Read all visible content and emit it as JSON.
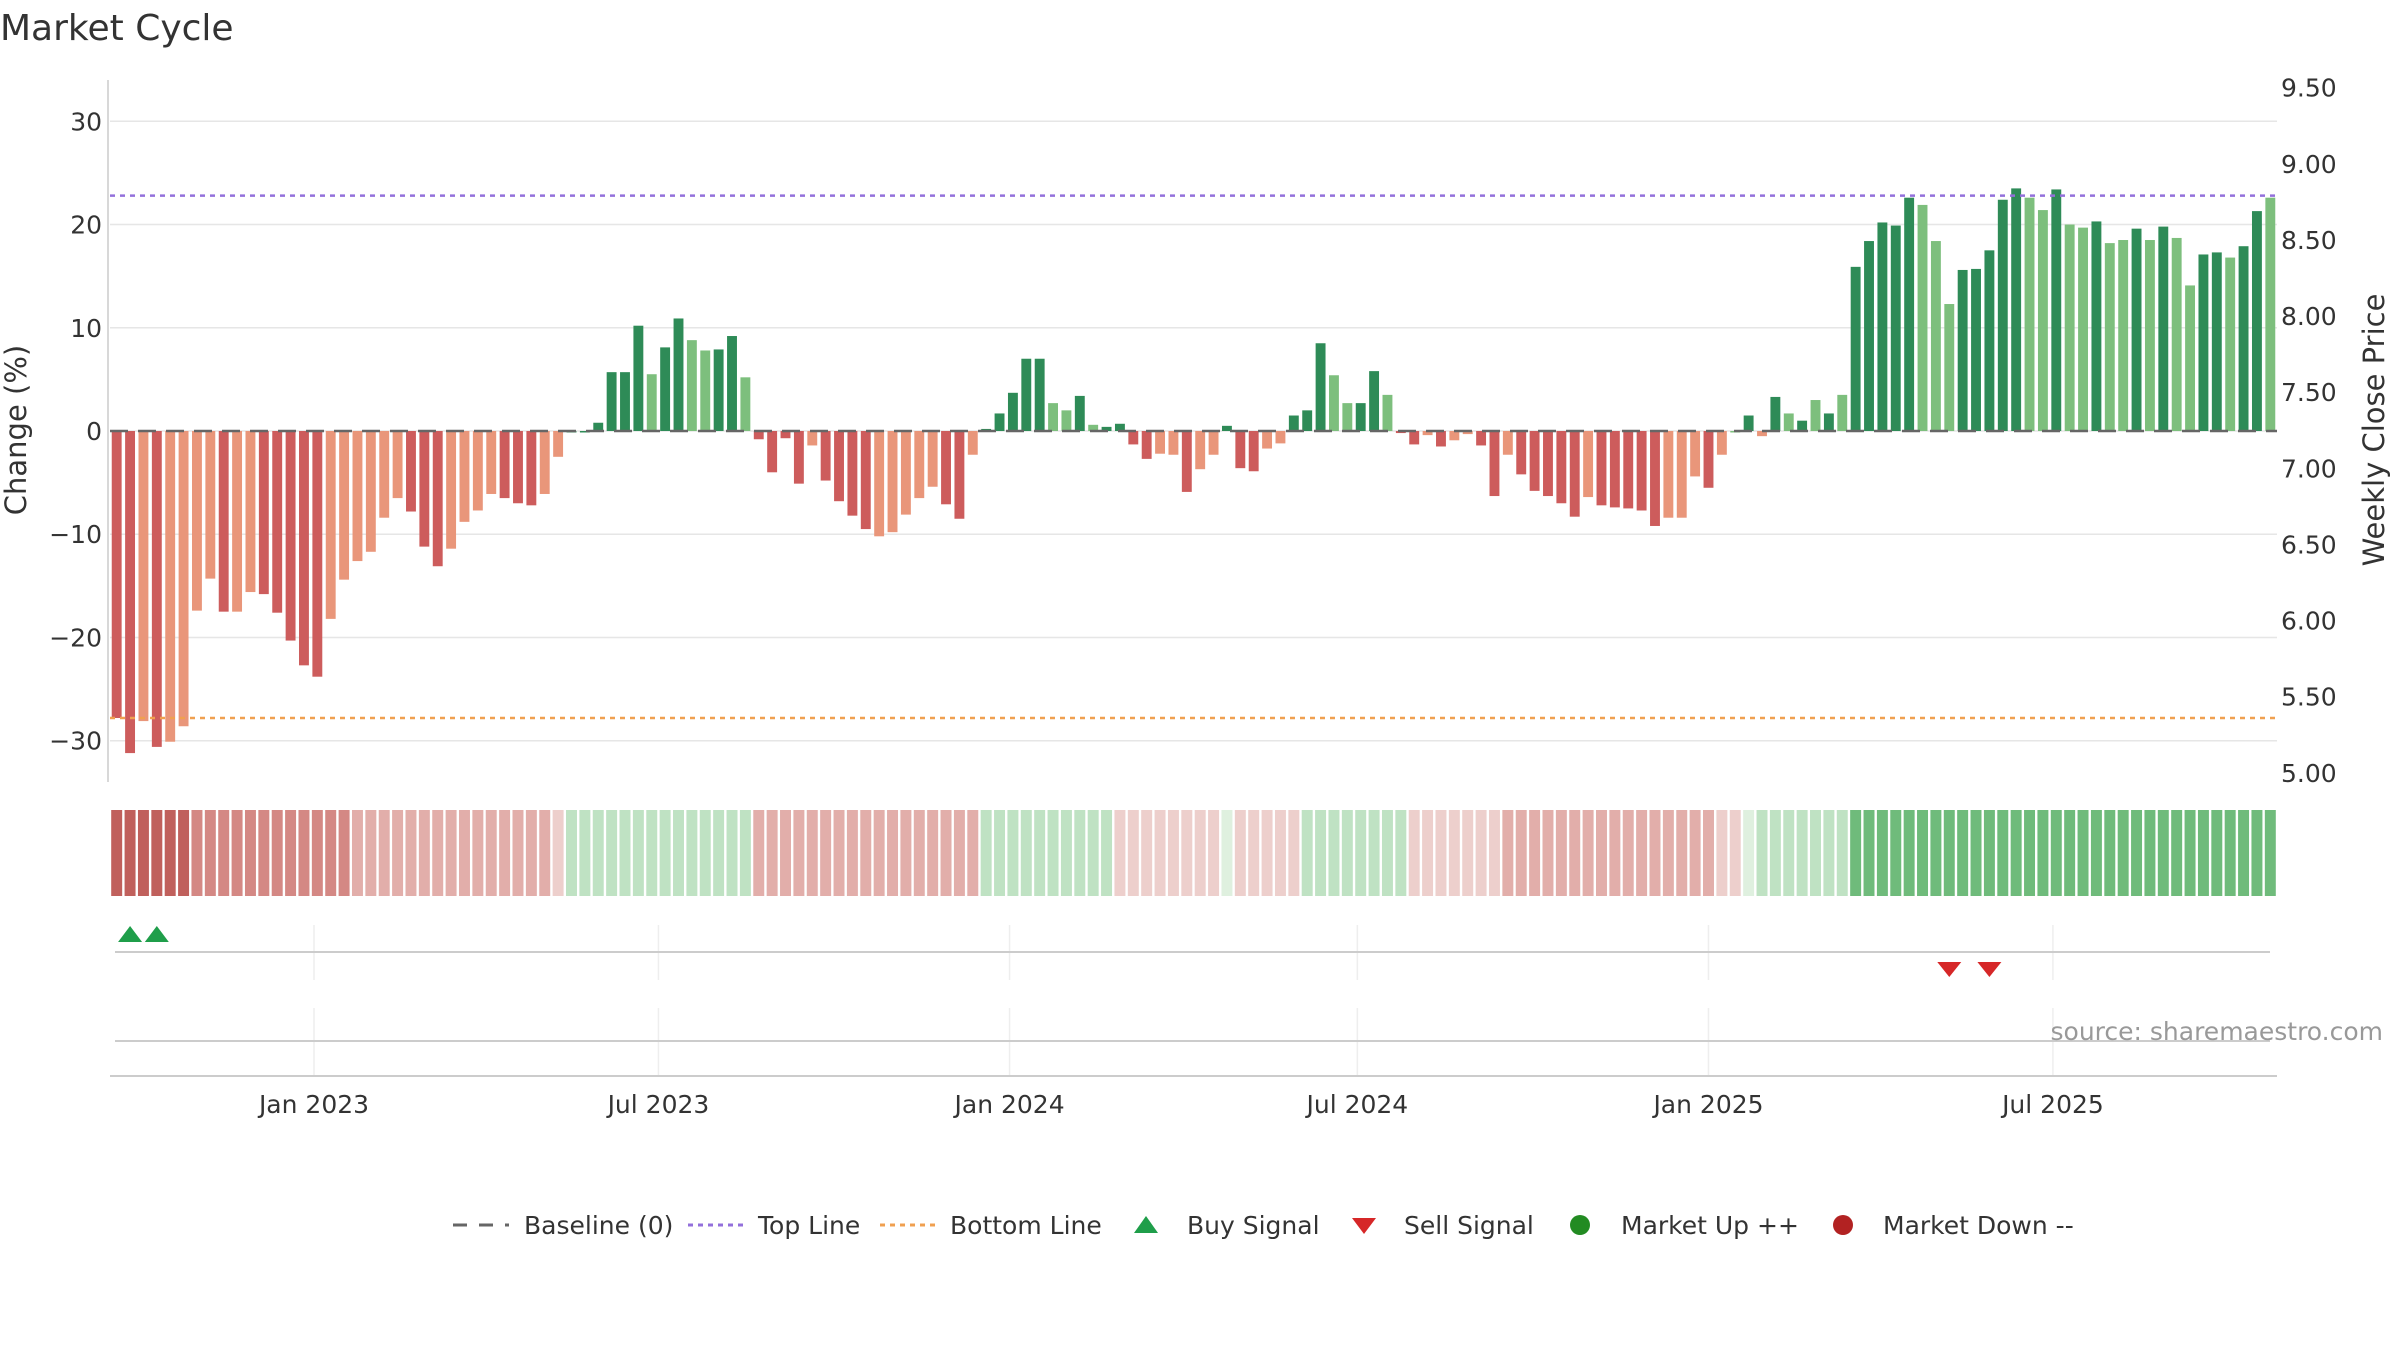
{
  "chart_data": {
    "type": "bar",
    "title": "Market Cycle",
    "y_left_label": "Change (%)",
    "y_right_label": "Weekly Close Price",
    "y_left_range": [
      -34,
      34
    ],
    "y_left_ticks": [
      "30",
      "20",
      "10",
      "0",
      "−10",
      "−20",
      "−30"
    ],
    "y_left_tick_values": [
      30,
      20,
      10,
      0,
      -10,
      -20,
      -30
    ],
    "y_right_range": [
      4.94,
      9.55
    ],
    "y_right_ticks": [
      "9.50",
      "9.00",
      "8.50",
      "8.00",
      "7.50",
      "7.00",
      "6.50",
      "6.00",
      "5.50",
      "5.00"
    ],
    "y_right_tick_values": [
      9.5,
      9.0,
      8.5,
      8.0,
      7.5,
      7.0,
      6.5,
      6.0,
      5.5,
      5.0
    ],
    "x_ticks": [
      "Jan 2023",
      "Jul 2023",
      "Jan 2024",
      "Jul 2024",
      "Jan 2025",
      "Jul 2025"
    ],
    "x_tick_positions": [
      15.25,
      41.0,
      67.25,
      93.25,
      119.5,
      145.25
    ],
    "grid": true,
    "top_line": 22.8,
    "bottom_line": -27.8,
    "weekly_change": [
      -27.8,
      -31.2,
      -28.1,
      -30.6,
      -30.1,
      -28.6,
      -17.4,
      -14.3,
      -17.5,
      -17.5,
      -15.6,
      -15.8,
      -17.6,
      -20.3,
      -22.7,
      -23.8,
      -18.2,
      -14.4,
      -12.6,
      -11.7,
      -8.4,
      -6.5,
      -7.8,
      -11.2,
      -13.1,
      -11.4,
      -8.8,
      -7.7,
      -6.1,
      -6.5,
      -7.0,
      -7.2,
      -6.1,
      -2.5,
      0.0,
      0.0,
      0.8,
      5.7,
      5.7,
      10.2,
      5.5,
      8.1,
      10.9,
      8.8,
      7.8,
      7.9,
      9.2,
      5.2,
      -0.8,
      -4.0,
      -0.7,
      -5.1,
      -1.4,
      -4.8,
      -6.8,
      -8.2,
      -9.5,
      -10.2,
      -9.8,
      -8.1,
      -6.5,
      -5.4,
      -7.1,
      -8.5,
      -2.3,
      0.2,
      1.7,
      3.7,
      7.0,
      7.0,
      2.7,
      2.0,
      3.4,
      0.6,
      0.4,
      0.7,
      -1.3,
      -2.7,
      -2.2,
      -2.3,
      -5.9,
      -3.7,
      -2.3,
      0.5,
      -3.6,
      -3.9,
      -1.7,
      -1.2,
      1.5,
      2.0,
      8.5,
      5.4,
      2.7,
      2.7,
      5.8,
      3.5,
      -0.2,
      -1.3,
      -0.4,
      -1.5,
      -0.9,
      -0.3,
      -1.4,
      -6.3,
      -2.3,
      -4.2,
      -5.8,
      -6.3,
      -7.0,
      -8.3,
      -6.4,
      -7.2,
      -7.4,
      -7.5,
      -7.7,
      -9.2,
      -8.4,
      -8.4,
      -4.4,
      -5.5,
      -2.3,
      0.0,
      1.5,
      -0.5,
      3.3,
      1.7,
      1.0,
      3.0,
      1.7,
      3.5,
      15.9,
      18.4,
      20.2,
      19.9,
      22.6,
      21.9,
      18.4,
      12.3,
      15.6,
      15.7,
      17.5,
      22.4,
      23.5,
      22.6,
      21.4,
      23.4,
      20.0,
      19.7,
      20.3,
      18.2,
      18.5,
      19.6,
      18.5,
      19.8,
      18.7,
      14.1,
      17.1,
      17.3,
      16.8,
      17.9,
      21.3,
      22.6
    ],
    "weekly_trend": [
      "down",
      "down",
      "up",
      "down",
      "up",
      "up",
      "up",
      "up",
      "down",
      "up",
      "up",
      "down",
      "down",
      "down",
      "down",
      "down",
      "up",
      "up",
      "up",
      "up",
      "up",
      "up",
      "down",
      "down",
      "down",
      "up",
      "up",
      "up",
      "up",
      "down",
      "down",
      "down",
      "up",
      "up",
      "up",
      "up",
      "up",
      "up",
      "up",
      "up",
      "down",
      "up",
      "up",
      "down",
      "down",
      "up",
      "up",
      "down",
      "down",
      "down",
      "down",
      "down",
      "up",
      "down",
      "down",
      "down",
      "down",
      "up",
      "up",
      "up",
      "up",
      "up",
      "down",
      "down",
      "up",
      "up",
      "up",
      "up",
      "up",
      "up",
      "down",
      "down",
      "up",
      "down",
      "up",
      "up",
      "down",
      "down",
      "up",
      "up",
      "down",
      "up",
      "up",
      "up",
      "down",
      "down",
      "up",
      "up",
      "up",
      "up",
      "up",
      "down",
      "down",
      "up",
      "up",
      "down",
      "down",
      "down",
      "up",
      "down",
      "up",
      "up",
      "down",
      "down",
      "up",
      "down",
      "down",
      "down",
      "down",
      "down",
      "up",
      "down",
      "down",
      "down",
      "down",
      "down",
      "up",
      "up",
      "up",
      "down",
      "up",
      "down",
      "up",
      "up",
      "up",
      "down",
      "up",
      "down",
      "up",
      "down",
      "up",
      "up",
      "up",
      "up",
      "up",
      "down",
      "down",
      "down",
      "up",
      "up",
      "up",
      "up",
      "up",
      "down",
      "down",
      "up",
      "down",
      "down",
      "up",
      "down",
      "down",
      "up",
      "down",
      "up",
      "down",
      "down",
      "up",
      "up",
      "down",
      "up",
      "up",
      "down"
    ],
    "heat_strip": [
      "d3",
      "d3",
      "d3",
      "d3",
      "d3",
      "d3",
      "d2",
      "d2",
      "d2",
      "d2",
      "d2",
      "d2",
      "d2",
      "d2",
      "d2",
      "d2",
      "d2",
      "d2",
      "d1",
      "d1",
      "d1",
      "d1",
      "d1",
      "d1",
      "d1",
      "d1",
      "d1",
      "d1",
      "d1",
      "d1",
      "d1",
      "d1",
      "d1",
      "d0",
      "u1",
      "u1",
      "u1",
      "u1",
      "u1",
      "u1",
      "u1",
      "u1",
      "u1",
      "u1",
      "u1",
      "u1",
      "u1",
      "u1",
      "d1",
      "d1",
      "d1",
      "d1",
      "d1",
      "d1",
      "d1",
      "d1",
      "d1",
      "d1",
      "d1",
      "d1",
      "d1",
      "d1",
      "d1",
      "d1",
      "d1",
      "u1",
      "u1",
      "u1",
      "u1",
      "u1",
      "u1",
      "u1",
      "u1",
      "u1",
      "u1",
      "d0",
      "d0",
      "d0",
      "d0",
      "d0",
      "d0",
      "d0",
      "d0",
      "u0",
      "d0",
      "d0",
      "d0",
      "d0",
      "d0",
      "u1",
      "u1",
      "u1",
      "u1",
      "u1",
      "u1",
      "u1",
      "u1",
      "d0",
      "d0",
      "d0",
      "d0",
      "d0",
      "d0",
      "d0",
      "d1",
      "d1",
      "d1",
      "d1",
      "d1",
      "d1",
      "d1",
      "d1",
      "d1",
      "d1",
      "d1",
      "d1",
      "d1",
      "d1",
      "d1",
      "d1",
      "d0",
      "d0",
      "u0",
      "u1",
      "u1",
      "u1",
      "u1",
      "u1",
      "u1",
      "u1",
      "u2",
      "u2",
      "u2",
      "u2",
      "u2",
      "u2",
      "u2",
      "u2",
      "u2",
      "u2",
      "u2",
      "u2",
      "u2",
      "u2",
      "u2",
      "u2",
      "u2",
      "u2",
      "u2",
      "u2",
      "u2",
      "u2",
      "u2",
      "u2",
      "u2",
      "u2",
      "u2",
      "u2",
      "u2",
      "u2",
      "u2",
      "u2"
    ],
    "buy_signals": [
      1,
      3
    ],
    "sell_signals": [
      137,
      140
    ],
    "legend": [
      "Baseline (0)",
      "Top Line",
      "Bottom Line",
      "Buy Signal",
      "Sell Signal",
      "Market Up ++",
      "Market Down --"
    ],
    "legend_placement": "bottom-center",
    "source": "source: sharemaestro.com"
  },
  "colors": {
    "strong_up": "#2e8b57",
    "light_up": "#7dbf7d",
    "strong_down": "#cd5c5c",
    "light_down": "#e9967a",
    "top_line": "#9370db",
    "bottom_line": "#f0a050",
    "buy": "#1f9e4a",
    "sell": "#d62728",
    "market_up": "#228b22",
    "market_down": "#b22222",
    "heat": {
      "d3": "#c0605c",
      "d2": "#d48884",
      "d1": "#e2aeaa",
      "d0": "#edcfcc",
      "u0": "#dff0df",
      "u1": "#bfe2c3",
      "u2": "#6fbb7b"
    }
  }
}
